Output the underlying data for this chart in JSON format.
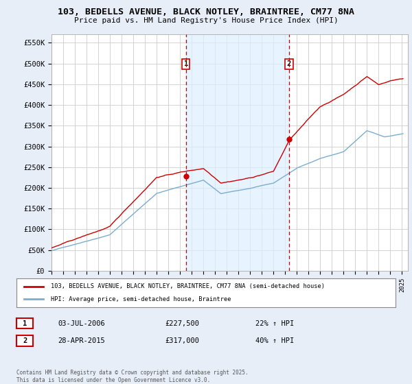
{
  "title_line1": "103, BEDELLS AVENUE, BLACK NOTLEY, BRAINTREE, CM77 8NA",
  "title_line2": "Price paid vs. HM Land Registry's House Price Index (HPI)",
  "ylabel_ticks": [
    "£0",
    "£50K",
    "£100K",
    "£150K",
    "£200K",
    "£250K",
    "£300K",
    "£350K",
    "£400K",
    "£450K",
    "£500K",
    "£550K"
  ],
  "ytick_values": [
    0,
    50000,
    100000,
    150000,
    200000,
    250000,
    300000,
    350000,
    400000,
    450000,
    500000,
    550000
  ],
  "ylim": [
    0,
    570000
  ],
  "xlim_start": 1995.0,
  "xlim_end": 2025.5,
  "sale1_x": 2006.5,
  "sale1_price": 227500,
  "sale2_x": 2015.33,
  "sale2_price": 317000,
  "sale1_label": "1",
  "sale2_label": "2",
  "sale1_info": "03-JUL-2006",
  "sale1_amount": "£227,500",
  "sale1_hpi": "22% ↑ HPI",
  "sale2_info": "28-APR-2015",
  "sale2_amount": "£317,000",
  "sale2_hpi": "40% ↑ HPI",
  "legend_label1": "103, BEDELLS AVENUE, BLACK NOTLEY, BRAINTREE, CM77 8NA (semi-detached house)",
  "legend_label2": "HPI: Average price, semi-detached house, Braintree",
  "footer": "Contains HM Land Registry data © Crown copyright and database right 2025.\nThis data is licensed under the Open Government Licence v3.0.",
  "line_color_red": "#cc0000",
  "line_color_blue": "#7aadcf",
  "shade_color": "#ddeeff",
  "background_color": "#e8eef8",
  "plot_bg": "#ffffff",
  "grid_color": "#cccccc"
}
